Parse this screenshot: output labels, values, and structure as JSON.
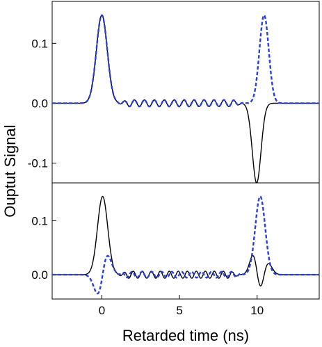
{
  "chart_data": [
    {
      "type": "line",
      "panel": "top",
      "xlim": [
        -3.2,
        14
      ],
      "ylim": [
        -0.133,
        0.17
      ],
      "yticks": [
        {
          "value": 0.1,
          "label": "0.1"
        },
        {
          "value": 0.0,
          "label": "0.0"
        },
        {
          "value": -0.1,
          "label": "-0.1"
        }
      ],
      "grid": false,
      "series": [
        {
          "color": "#000000",
          "dash": "solid",
          "components": [
            {
              "kind": "gauss",
              "amp": 0.147,
              "center": 0.0,
              "sigma": 0.35
            },
            {
              "kind": "gauss",
              "amp": -0.133,
              "center": 9.97,
              "sigma": 0.28
            },
            {
              "kind": "ripple",
              "amp": 0.0055,
              "x_start": 1.3,
              "x_end": 8.8,
              "period": 0.64,
              "phase": 0.0
            }
          ]
        },
        {
          "color": "#2a3fe0",
          "dash": "dashed",
          "components": [
            {
              "kind": "gauss",
              "amp": 0.147,
              "center": 0.0,
              "sigma": 0.35
            },
            {
              "kind": "gauss",
              "amp": 0.147,
              "center": 10.45,
              "sigma": 0.3
            },
            {
              "kind": "ripple",
              "amp": 0.0055,
              "x_start": 1.3,
              "x_end": 8.8,
              "period": 0.64,
              "phase": 0.0
            }
          ]
        }
      ]
    },
    {
      "type": "line",
      "panel": "bottom",
      "xlim": [
        -3.2,
        14
      ],
      "ylim": [
        -0.045,
        0.17
      ],
      "yticks": [
        {
          "value": 0.1,
          "label": "0.1"
        },
        {
          "value": 0.0,
          "label": "0.0"
        }
      ],
      "xticks": [
        {
          "value": 0,
          "label": "0"
        },
        {
          "value": 5,
          "label": "5"
        },
        {
          "value": 10,
          "label": "10"
        }
      ],
      "grid": false,
      "series": [
        {
          "color": "#000000",
          "dash": "solid",
          "components": [
            {
              "kind": "gauss",
              "amp": 0.145,
              "center": 0.05,
              "sigma": 0.33
            },
            {
              "kind": "dgauss",
              "amp": -0.035,
              "center": 10.0,
              "sigma": 0.28
            },
            {
              "kind": "gauss",
              "amp": 0.028,
              "center": 10.6,
              "sigma": 0.3
            },
            {
              "kind": "ripple",
              "amp": 0.0065,
              "x_start": 1.3,
              "x_end": 8.6,
              "period": 0.58,
              "phase": 0.0
            }
          ]
        },
        {
          "color": "#2a3fe0",
          "dash": "dashed",
          "components": [
            {
              "kind": "dgauss",
              "amp": 0.035,
              "center": 0.05,
              "sigma": 0.33
            },
            {
              "kind": "gauss",
              "amp": 0.145,
              "center": 10.2,
              "sigma": 0.32
            },
            {
              "kind": "ripple",
              "amp": 0.0055,
              "x_start": 1.3,
              "x_end": 8.8,
              "period": 0.64,
              "phase": 1.57
            }
          ]
        }
      ]
    }
  ],
  "axes": {
    "xlabel": "Retarded time (ns)",
    "ylabel": "Ouptut Signal"
  }
}
